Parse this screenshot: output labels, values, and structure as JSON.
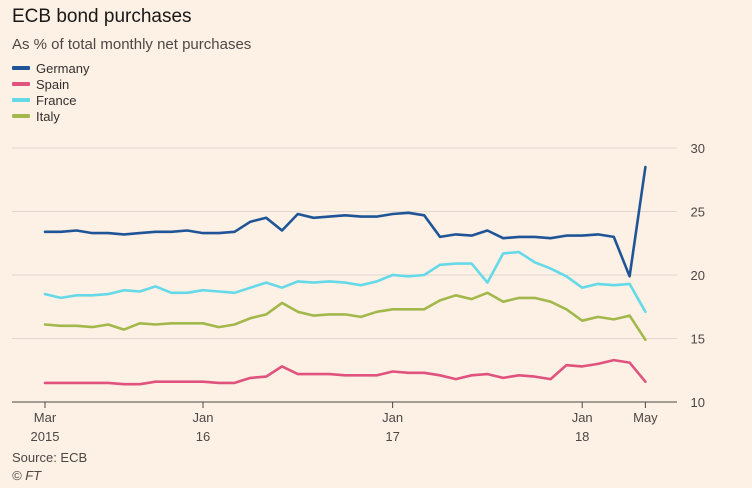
{
  "chart_data": {
    "type": "line",
    "title": "ECB bond purchases",
    "subtitle": "As % of total monthly net purchases",
    "xlabel": "",
    "ylabel": "",
    "ylim": [
      10,
      30
    ],
    "yticks": [
      "30",
      "25",
      "20",
      "15",
      "10"
    ],
    "x_tick_labels": [
      {
        "index": 0,
        "top": "Mar",
        "bottom": "2015"
      },
      {
        "index": 10,
        "top": "Jan",
        "bottom": "16"
      },
      {
        "index": 22,
        "top": "Jan",
        "bottom": "17"
      },
      {
        "index": 34,
        "top": "Jan",
        "bottom": "18"
      },
      {
        "index": 38,
        "top": "May",
        "bottom": ""
      }
    ],
    "legend_position": "top-left",
    "series": [
      {
        "name": "Germany",
        "color": "#1f5597",
        "values": [
          23.4,
          23.4,
          23.5,
          23.3,
          23.3,
          23.2,
          23.3,
          23.4,
          23.4,
          23.5,
          23.3,
          23.3,
          23.4,
          24.2,
          24.5,
          23.5,
          24.8,
          24.5,
          24.6,
          24.7,
          24.6,
          24.6,
          24.8,
          24.9,
          24.7,
          23.0,
          23.2,
          23.1,
          23.5,
          22.9,
          23.0,
          23.0,
          22.9,
          23.1,
          23.1,
          23.2,
          23.0,
          19.9,
          28.5
        ]
      },
      {
        "name": "Spain",
        "color": "#e0537f",
        "values": [
          11.5,
          11.5,
          11.5,
          11.5,
          11.5,
          11.4,
          11.4,
          11.6,
          11.6,
          11.6,
          11.6,
          11.5,
          11.5,
          11.9,
          12.0,
          12.8,
          12.2,
          12.2,
          12.2,
          12.1,
          12.1,
          12.1,
          12.4,
          12.3,
          12.3,
          12.1,
          11.8,
          12.1,
          12.2,
          11.9,
          12.1,
          12.0,
          11.8,
          12.9,
          12.8,
          13.0,
          13.3,
          13.1,
          11.6
        ]
      },
      {
        "name": "France",
        "color": "#66d9e8",
        "values": [
          18.5,
          18.2,
          18.4,
          18.4,
          18.5,
          18.8,
          18.7,
          19.1,
          18.6,
          18.6,
          18.8,
          18.7,
          18.6,
          19.0,
          19.4,
          19.0,
          19.5,
          19.4,
          19.5,
          19.4,
          19.2,
          19.5,
          20.0,
          19.9,
          20.0,
          20.8,
          20.9,
          20.9,
          19.4,
          21.7,
          21.8,
          21.0,
          20.5,
          19.9,
          19.0,
          19.3,
          19.2,
          19.3,
          17.1
        ]
      },
      {
        "name": "Italy",
        "color": "#a2b84b",
        "values": [
          16.1,
          16.0,
          16.0,
          15.9,
          16.1,
          15.7,
          16.2,
          16.1,
          16.2,
          16.2,
          16.2,
          15.9,
          16.1,
          16.6,
          16.9,
          17.8,
          17.1,
          16.8,
          16.9,
          16.9,
          16.7,
          17.1,
          17.3,
          17.3,
          17.3,
          18.0,
          18.4,
          18.1,
          18.6,
          17.9,
          18.2,
          18.2,
          17.9,
          17.3,
          16.4,
          16.7,
          16.5,
          16.8,
          14.9
        ]
      }
    ]
  },
  "source": "Source: ECB",
  "credit": "© FT",
  "colors": {
    "background": "#fdf0e5",
    "grid": "#e0d7ce",
    "axis": "#4d4845"
  }
}
